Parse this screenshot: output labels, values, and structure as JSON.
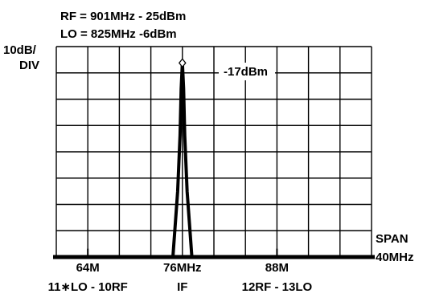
{
  "chart_data": {
    "type": "line",
    "title": "RF = 901MHz - 25dBm",
    "subtitle": "LO = 825MHz -6dBm",
    "ylabel": [
      "10dB/",
      "DIV"
    ],
    "span_label": [
      "SPAN",
      "40MHz"
    ],
    "grid": true,
    "xlim": [
      60,
      100
    ],
    "ylim": [
      -100,
      -10
    ],
    "ticks": [
      {
        "x": 64,
        "label": "64M",
        "product": "11∗LO - 10RF"
      },
      {
        "x": 76,
        "label": "76MHz",
        "product": "IF"
      },
      {
        "x": 88,
        "label": "88M",
        "product": "12RF - 13LO"
      }
    ],
    "peak": {
      "x": 76,
      "y": -17,
      "label": "-17dBm"
    },
    "series": [
      {
        "x": [
          60,
          74.8,
          75.4,
          75.7,
          75.85,
          76,
          76.15,
          76.3,
          76.6,
          77.2,
          100
        ],
        "y": [
          -100,
          -100,
          -72,
          -48,
          -28,
          -17,
          -28,
          -48,
          -72,
          -100,
          -100
        ]
      }
    ],
    "noise_floor_y": -100,
    "spurs": [
      {
        "x": 64,
        "y": -98.5
      },
      {
        "x": 88,
        "y": -98.5
      }
    ]
  }
}
